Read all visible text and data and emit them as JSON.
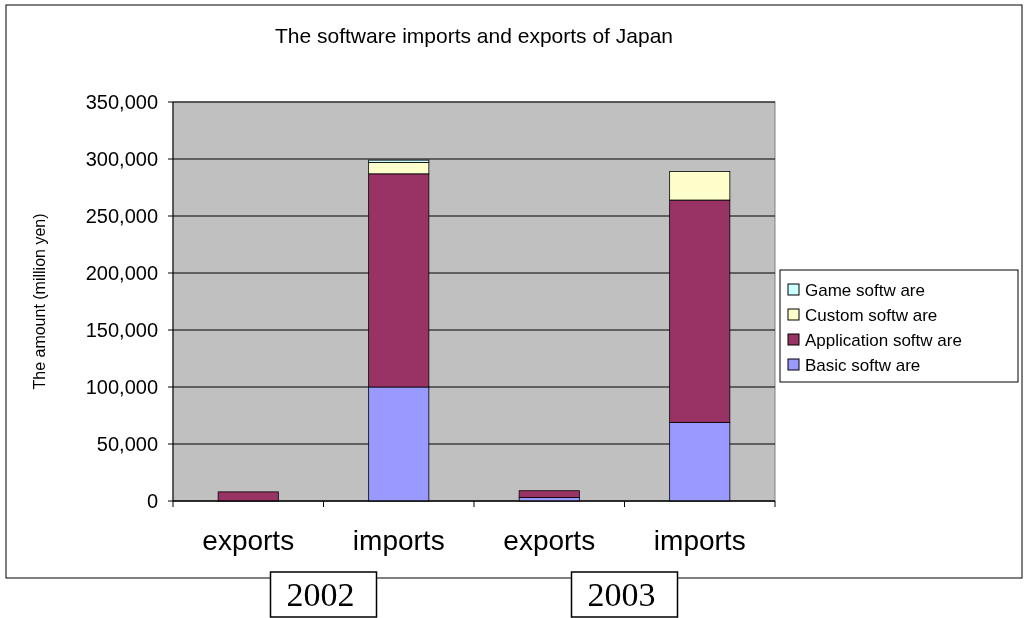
{
  "chart_data": {
    "type": "bar",
    "title": "The software imports and exports of Japan",
    "ylabel": "The amount (million yen)",
    "categories": [
      "exports",
      "imports",
      "exports",
      "imports"
    ],
    "stacked": true,
    "series": [
      {
        "name": "Basic softw are",
        "color": "#9999ff",
        "values": [
          null,
          100000,
          3000,
          69000
        ]
      },
      {
        "name": "Application softw are",
        "color": "#993366",
        "values": [
          8000,
          187000,
          6000,
          195000
        ]
      },
      {
        "name": "Custom softw are",
        "color": "#ffffcc",
        "values": [
          0,
          10000,
          0,
          25000
        ]
      },
      {
        "name": "Game softw are",
        "color": "#ccffff",
        "values": [
          0,
          2000,
          0,
          0
        ]
      }
    ],
    "ylim": [
      0,
      350000
    ],
    "yticks": [
      {
        "value": 0,
        "label": "0"
      },
      {
        "value": 50000,
        "label": "50,000"
      },
      {
        "value": 100000,
        "label": "100,000"
      },
      {
        "value": 150000,
        "label": "150,000"
      },
      {
        "value": 200000,
        "label": "200,000"
      },
      {
        "value": 250000,
        "label": "250,000"
      },
      {
        "value": 300000,
        "label": "300,000"
      },
      {
        "value": 350000,
        "label": "350,000"
      }
    ],
    "grid": "y",
    "legend": "right",
    "annotations": [
      "2002",
      "2003"
    ]
  }
}
